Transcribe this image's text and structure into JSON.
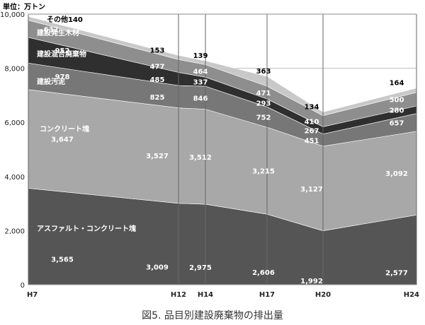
{
  "chart_data": {
    "type": "area",
    "stacked": true,
    "unit_label": "単位：万トン",
    "caption": "図5. 品目別建設廃棄物の排出量",
    "x": [
      "H7",
      "H12",
      "H14",
      "H17",
      "H20",
      "H24"
    ],
    "ylim": [
      0,
      10000
    ],
    "yticks": [
      "0",
      "2,000",
      "4,000",
      "6,000",
      "8,000",
      "10,000"
    ],
    "grid": true,
    "series": [
      {
        "name": "アスファルト・コンクリート塊",
        "values": [
          3565,
          3009,
          2975,
          2606,
          1992,
          2577
        ],
        "labels": [
          "3,565",
          "3,009",
          "2,975",
          "2,606",
          "1,992",
          "2,577"
        ],
        "color": "#555555",
        "text_color": "#ffffff"
      },
      {
        "name": "コンクリート塊",
        "values": [
          3647,
          3527,
          3512,
          3215,
          3127,
          3092
        ],
        "labels": [
          "3,647",
          "3,527",
          "3,512",
          "3,215",
          "3,127",
          "3,092"
        ],
        "color": "#a8a8a8",
        "text_color": "#ffffff"
      },
      {
        "name": "建設汚泥",
        "values": [
          978,
          825,
          846,
          752,
          451,
          657
        ],
        "labels": [
          "978",
          "825",
          "846",
          "752",
          "451",
          "657"
        ],
        "color": "#777777",
        "text_color": "#ffffff"
      },
      {
        "name": "建設混合廃棄物",
        "values": [
          952,
          485,
          337,
          293,
          267,
          280
        ],
        "labels": [
          "952",
          "485",
          "337",
          "293",
          "267",
          "280"
        ],
        "color": "#2f2f2f",
        "text_color": "#ffffff"
      },
      {
        "name": "建設発生木材",
        "values": [
          632,
          477,
          464,
          471,
          410,
          500
        ],
        "labels": [
          "632",
          "477",
          "464",
          "471",
          "410",
          "500"
        ],
        "color": "#8e8e8e",
        "text_color": "#ffffff"
      },
      {
        "name": "その他",
        "values": [
          140,
          153,
          139,
          363,
          134,
          164
        ],
        "labels": [
          "140",
          "153",
          "139",
          "363",
          "134",
          "164"
        ],
        "color": "#c8c8c8",
        "text_color": "#000000"
      }
    ]
  }
}
